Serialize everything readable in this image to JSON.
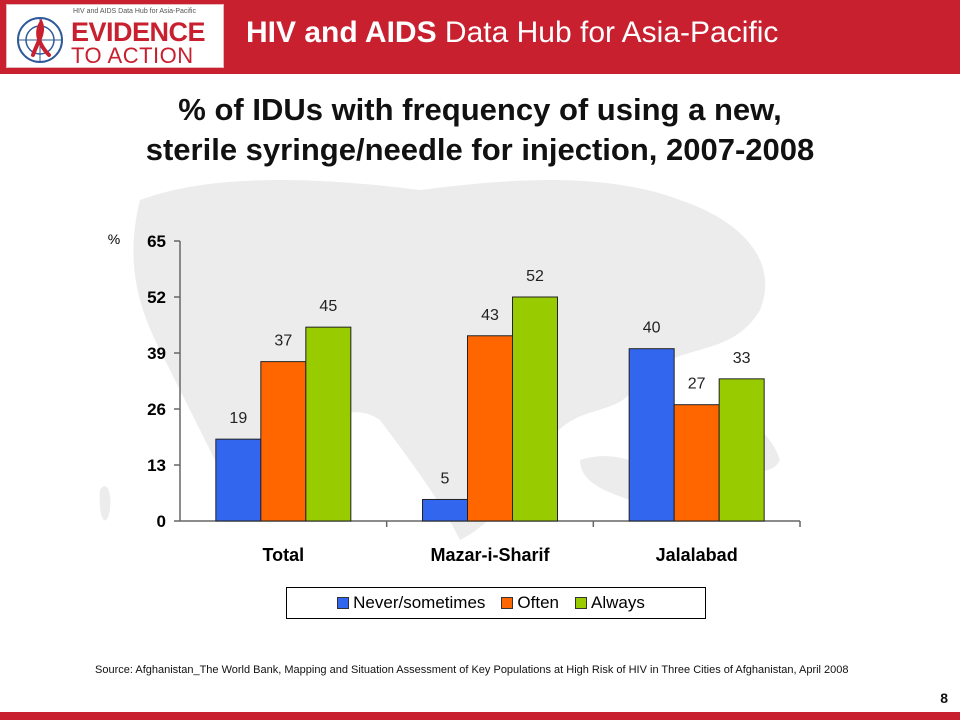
{
  "header": {
    "logo_small": "HIV and AIDS Data Hub for Asia-Pacific",
    "logo_line1": "EVIDENCE",
    "logo_line2": "TO ACTION",
    "title_bold": "HIV and AIDS",
    "title_rest": " Data Hub for Asia-Pacific"
  },
  "colors": {
    "header_red": "#c8202f",
    "never_sometimes": "#3366ee",
    "often": "#ff6600",
    "always": "#99cc00"
  },
  "chart_data": {
    "type": "bar",
    "title_line1": "% of IDUs with frequency of using a new,",
    "title_line2": "sterile syringe/needle for injection, 2007-2008",
    "ylabel": "%",
    "ylim": [
      0,
      65
    ],
    "yticks": [
      0,
      13,
      26,
      39,
      52,
      65
    ],
    "categories": [
      "Total",
      "Mazar-i-Sharif",
      "Jalalabad"
    ],
    "series": [
      {
        "name": "Never/sometimes",
        "values": [
          19,
          5,
          40
        ]
      },
      {
        "name": "Often",
        "values": [
          37,
          43,
          27
        ]
      },
      {
        "name": "Always",
        "values": [
          45,
          52,
          33
        ]
      }
    ],
    "grid": false,
    "legend_position": "bottom"
  },
  "footer": {
    "source": "Source: Afghanistan_The World Bank, Mapping and Situation Assessment of Key Populations at High Risk of HIV in Three Cities of Afghanistan, April 2008",
    "page": "8"
  }
}
